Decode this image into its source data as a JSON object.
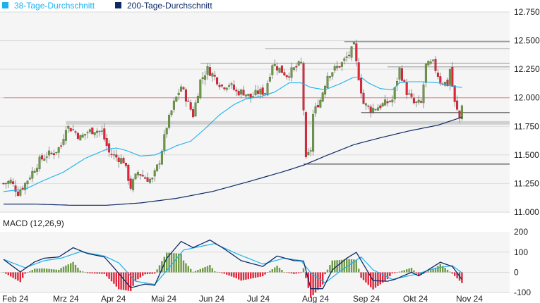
{
  "chart_data": {
    "type": "candlestick",
    "legend": {
      "position": "top-left",
      "items": [
        {
          "label": "38-Tage-Durchschnitt",
          "color": "#1ab2ee"
        },
        {
          "label": "200-Tage-Durchschnitt",
          "color": "#0e2a66"
        }
      ]
    },
    "x_unit": "trading-day index",
    "x_tick_labels": [
      "Feb 24",
      "Mrz 24",
      "Apr 24",
      "Mai 24",
      "Jun 24",
      "Jul 24",
      "Aug 24",
      "Sep 24",
      "Okt 24",
      "Nov 24"
    ],
    "price_panel": {
      "ylim": [
        11.0,
        12.75
      ],
      "y_tick_labels": [
        "12.750",
        "12.500",
        "12.250",
        "12.000",
        "11.750",
        "11.500",
        "11.250",
        "11.000"
      ],
      "y_ticks": [
        12.75,
        12.5,
        12.25,
        12.0,
        11.75,
        11.5,
        11.25,
        11.0
      ],
      "grid": true,
      "close_path": [
        [
          0,
          11.25
        ],
        [
          3,
          11.27
        ],
        [
          6,
          11.17
        ],
        [
          9,
          11.25
        ],
        [
          12,
          11.35
        ],
        [
          15,
          11.45
        ],
        [
          18,
          11.5
        ],
        [
          21,
          11.52
        ],
        [
          24,
          11.58
        ],
        [
          26,
          11.75
        ],
        [
          29,
          11.72
        ],
        [
          32,
          11.65
        ],
        [
          35,
          11.7
        ],
        [
          38,
          11.72
        ],
        [
          41,
          11.7
        ],
        [
          44,
          11.52
        ],
        [
          47,
          11.48
        ],
        [
          50,
          11.45
        ],
        [
          53,
          11.22
        ],
        [
          56,
          11.35
        ],
        [
          59,
          11.3
        ],
        [
          62,
          11.28
        ],
        [
          65,
          11.45
        ],
        [
          68,
          11.75
        ],
        [
          71,
          11.95
        ],
        [
          74,
          12.1
        ],
        [
          76,
          12.0
        ],
        [
          79,
          11.85
        ],
        [
          82,
          12.15
        ],
        [
          85,
          12.25
        ],
        [
          88,
          12.18
        ],
        [
          91,
          12.1
        ],
        [
          94,
          12.12
        ],
        [
          97,
          12.05
        ],
        [
          100,
          12.05
        ],
        [
          103,
          12.0
        ],
        [
          106,
          12.05
        ],
        [
          109,
          12.05
        ],
        [
          112,
          12.3
        ],
        [
          115,
          12.25
        ],
        [
          118,
          12.2
        ],
        [
          121,
          12.25
        ],
        [
          124,
          12.3
        ],
        [
          125,
          11.9
        ],
        [
          126,
          11.45
        ],
        [
          128,
          11.55
        ],
        [
          129,
          11.85
        ],
        [
          131,
          11.95
        ],
        [
          132,
          11.98
        ],
        [
          135,
          12.2
        ],
        [
          138,
          12.25
        ],
        [
          141,
          12.3
        ],
        [
          144,
          12.38
        ],
        [
          146,
          12.45
        ],
        [
          147,
          12.3
        ],
        [
          150,
          11.95
        ],
        [
          153,
          11.9
        ],
        [
          156,
          11.92
        ],
        [
          159,
          11.95
        ],
        [
          162,
          11.98
        ],
        [
          165,
          12.25
        ],
        [
          168,
          12.05
        ],
        [
          171,
          11.95
        ],
        [
          174,
          11.95
        ],
        [
          176,
          12.28
        ],
        [
          179,
          12.3
        ],
        [
          182,
          12.15
        ],
        [
          185,
          12.12
        ],
        [
          186,
          12.25
        ],
        [
          188,
          11.95
        ],
        [
          190,
          11.82
        ],
        [
          191,
          11.95
        ]
      ],
      "ma38": [
        [
          0,
          11.18
        ],
        [
          9,
          11.2
        ],
        [
          16,
          11.27
        ],
        [
          25,
          11.35
        ],
        [
          34,
          11.47
        ],
        [
          43,
          11.55
        ],
        [
          47,
          11.56
        ],
        [
          51,
          11.54
        ],
        [
          57,
          11.49
        ],
        [
          63,
          11.5
        ],
        [
          69,
          11.55
        ],
        [
          72,
          11.58
        ],
        [
          78,
          11.62
        ],
        [
          84,
          11.73
        ],
        [
          90,
          11.85
        ],
        [
          96,
          11.94
        ],
        [
          101,
          11.99
        ],
        [
          107,
          12.01
        ],
        [
          113,
          12.05
        ],
        [
          119,
          12.13
        ],
        [
          124,
          12.13
        ],
        [
          128,
          12.09
        ],
        [
          134,
          12.07
        ],
        [
          140,
          12.12
        ],
        [
          146,
          12.18
        ],
        [
          149,
          12.18
        ],
        [
          152,
          12.13
        ],
        [
          157,
          12.08
        ],
        [
          162,
          12.07
        ],
        [
          165,
          12.13
        ],
        [
          169,
          12.14
        ],
        [
          175,
          12.14
        ],
        [
          181,
          12.13
        ],
        [
          187,
          12.1
        ],
        [
          191,
          12.09
        ]
      ],
      "ma200": [
        [
          0,
          11.07
        ],
        [
          13,
          11.07
        ],
        [
          28,
          11.06
        ],
        [
          43,
          11.06
        ],
        [
          57,
          11.08
        ],
        [
          72,
          11.12
        ],
        [
          87,
          11.18
        ],
        [
          101,
          11.26
        ],
        [
          116,
          11.35
        ],
        [
          125,
          11.41
        ],
        [
          134,
          11.49
        ],
        [
          146,
          11.59
        ],
        [
          157,
          11.65
        ],
        [
          169,
          11.71
        ],
        [
          181,
          11.76
        ],
        [
          191,
          11.83
        ]
      ],
      "horizontal_levels": [
        {
          "value": 12.49,
          "from": 142,
          "style": "dark"
        },
        {
          "value": 12.43,
          "from": 109,
          "style": "gray"
        },
        {
          "value": 12.3,
          "from": 82,
          "style": "gray"
        },
        {
          "value": 12.27,
          "from": 160,
          "style": "gray"
        },
        {
          "value": 11.87,
          "from": 149,
          "style": "dark"
        },
        {
          "value": 11.42,
          "from": 125,
          "style": "dark"
        },
        {
          "value": 11.78,
          "from": 26,
          "style": "band"
        },
        {
          "value": 12.0,
          "from": 0,
          "style": "red"
        }
      ]
    },
    "macd_panel": {
      "title": "MACD (12,26,9)",
      "ylim": [
        -100,
        200
      ],
      "y_tick_labels": [
        "200",
        "100",
        "0",
        "-100"
      ],
      "y_ticks": [
        200,
        100,
        0,
        -100
      ],
      "macd": [
        [
          0,
          64
        ],
        [
          7,
          2
        ],
        [
          13,
          52
        ],
        [
          17,
          70
        ],
        [
          23,
          76
        ],
        [
          29,
          122
        ],
        [
          35,
          93
        ],
        [
          42,
          76
        ],
        [
          46,
          23
        ],
        [
          53,
          -76
        ],
        [
          59,
          -58
        ],
        [
          63,
          -64
        ],
        [
          68,
          70
        ],
        [
          74,
          153
        ],
        [
          79,
          122
        ],
        [
          86,
          160
        ],
        [
          92,
          116
        ],
        [
          99,
          58
        ],
        [
          108,
          29
        ],
        [
          114,
          81
        ],
        [
          121,
          58
        ],
        [
          125,
          56
        ],
        [
          128,
          -81
        ],
        [
          133,
          -81
        ],
        [
          137,
          12
        ],
        [
          143,
          70
        ],
        [
          147,
          99
        ],
        [
          154,
          -41
        ],
        [
          160,
          -44
        ],
        [
          163,
          -35
        ],
        [
          170,
          0
        ],
        [
          173,
          -17
        ],
        [
          182,
          50
        ],
        [
          187,
          29
        ],
        [
          191,
          -35
        ]
      ],
      "signal": [
        [
          0,
          64
        ],
        [
          9,
          23
        ],
        [
          17,
          58
        ],
        [
          24,
          70
        ],
        [
          32,
          102
        ],
        [
          42,
          81
        ],
        [
          48,
          47
        ],
        [
          55,
          -44
        ],
        [
          63,
          -60
        ],
        [
          69,
          23
        ],
        [
          75,
          110
        ],
        [
          82,
          128
        ],
        [
          88,
          142
        ],
        [
          97,
          93
        ],
        [
          108,
          41
        ],
        [
          117,
          70
        ],
        [
          124,
          58
        ],
        [
          128,
          -2
        ],
        [
          134,
          -52
        ],
        [
          141,
          12
        ],
        [
          149,
          76
        ],
        [
          154,
          12
        ],
        [
          162,
          -35
        ],
        [
          172,
          -9
        ],
        [
          180,
          21
        ],
        [
          187,
          33
        ],
        [
          191,
          -2
        ]
      ],
      "colors": {
        "macd": "#0e2a66",
        "signal": "#1ab2ee",
        "hist_pos": "#6f9a48",
        "hist_neg": "#e0283c"
      }
    },
    "colors": {
      "up": "#6f9a48",
      "down": "#e0283c",
      "red_line": "#e87a80"
    }
  }
}
